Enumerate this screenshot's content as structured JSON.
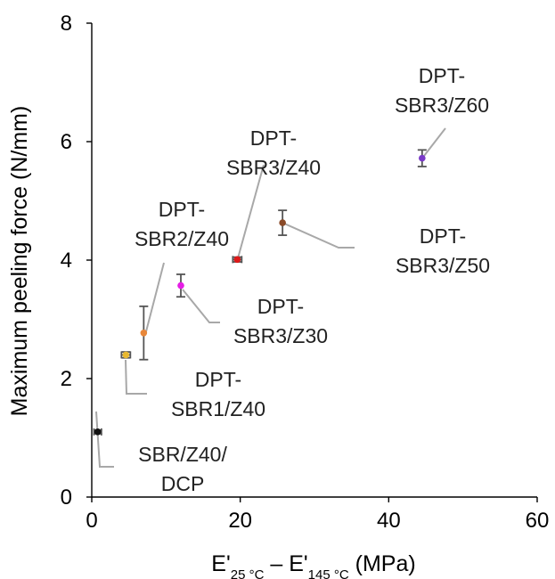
{
  "chart_data": {
    "type": "scatter",
    "xlabel": "E'25 °C – E'145 °C (MPa)",
    "xlabel_parts": {
      "a": "E'",
      "a_sub": "25 °C",
      "dash": " – ",
      "b": "E'",
      "b_sub": "145 °C",
      "unit": " (MPa)"
    },
    "ylabel": "Maximum peeling force (N/mm)",
    "xlim": [
      0,
      60
    ],
    "ylim": [
      0,
      8
    ],
    "x_ticks": [
      "0",
      "20",
      "40",
      "60"
    ],
    "y_ticks": [
      "0",
      "2",
      "4",
      "6",
      "8"
    ],
    "grid": false,
    "points": [
      {
        "label_lines": [
          "SBR/Z40/",
          "DCP"
        ],
        "x": 0.8,
        "y": 1.1,
        "err": 0.03,
        "xerr": 0.5,
        "color": "#111111"
      },
      {
        "label_lines": [
          "DPT-",
          "SBR1/Z40"
        ],
        "x": 4.6,
        "y": 2.4,
        "err": 0.05,
        "xerr": 0.6,
        "color": "#e8b830"
      },
      {
        "label_lines": [
          "DPT-",
          "SBR2/Z40"
        ],
        "x": 7.0,
        "y": 2.77,
        "err": 0.45,
        "xerr": 0,
        "color": "#e8873a"
      },
      {
        "label_lines": [
          "DPT-",
          "SBR3/Z30"
        ],
        "x": 12.0,
        "y": 3.57,
        "err": 0.19,
        "xerr": 0,
        "color": "#e51ee5"
      },
      {
        "label_lines": [
          "DPT-",
          "SBR3/Z40"
        ],
        "x": 19.6,
        "y": 4.01,
        "err": 0.04,
        "xerr": 0.6,
        "color": "#dd1a1a"
      },
      {
        "label_lines": [
          "DPT-",
          "SBR3/Z50"
        ],
        "x": 25.7,
        "y": 4.63,
        "err": 0.21,
        "xerr": 0,
        "color": "#8a4a28"
      },
      {
        "label_lines": [
          "DPT-",
          "SBR3/Z60"
        ],
        "x": 44.5,
        "y": 5.72,
        "err": 0.14,
        "xerr": 0,
        "color": "#7a3ac8"
      }
    ]
  }
}
